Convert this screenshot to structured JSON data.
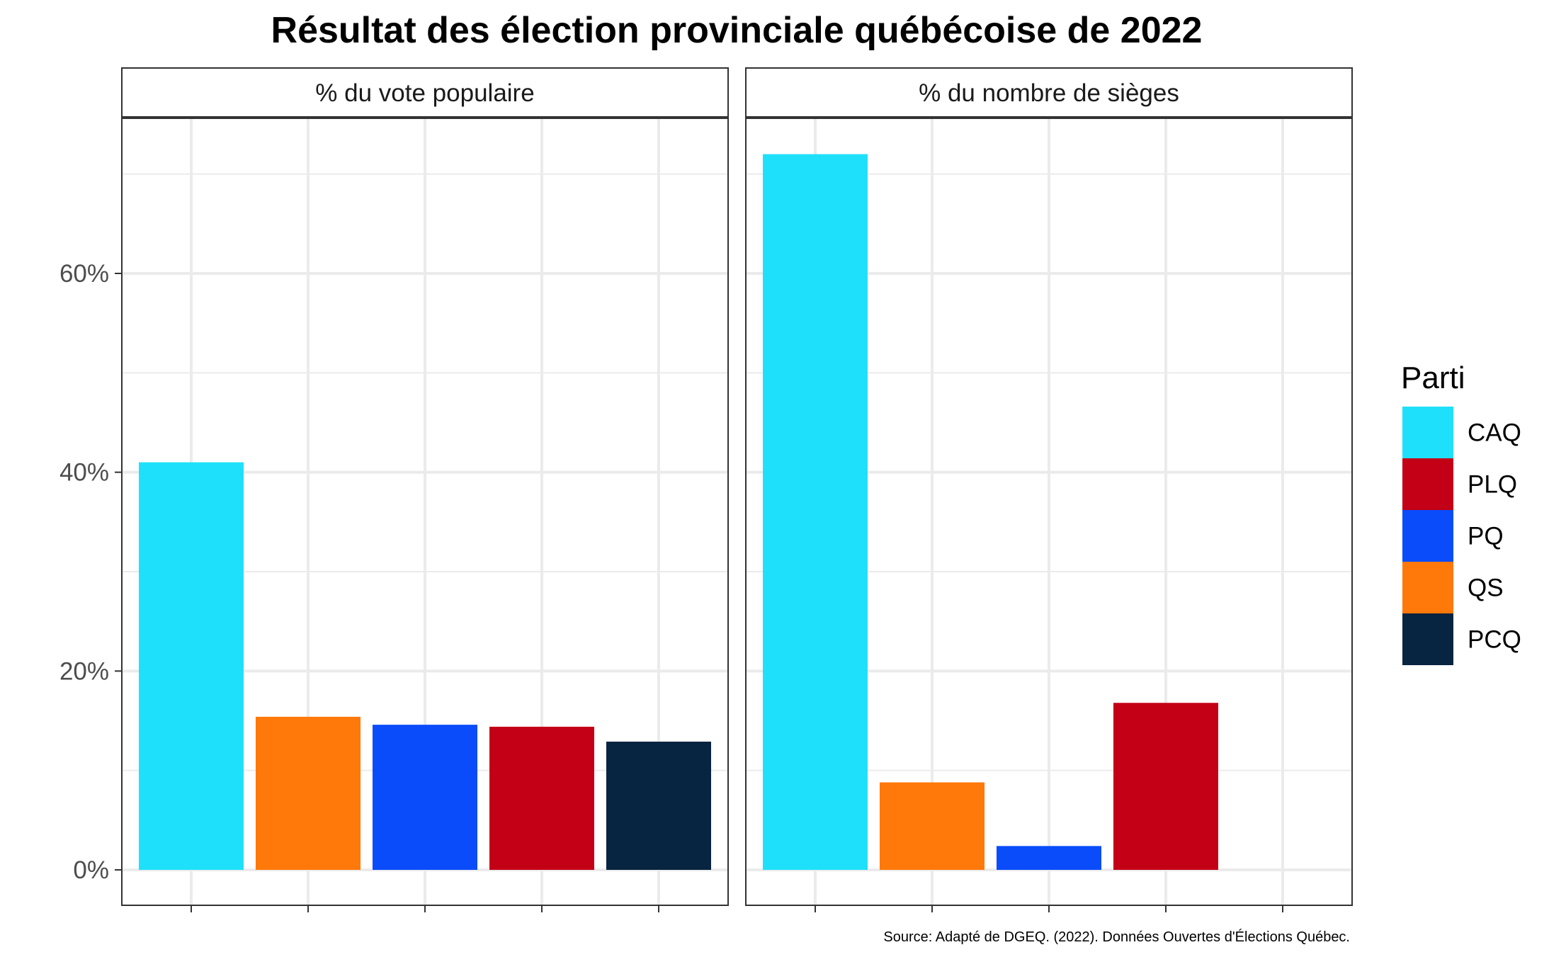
{
  "chart_data": {
    "type": "bar",
    "title": "Résultat des élection provinciale québécoise de 2022",
    "caption": "Source: Adapté de DGEQ. (2022). Données Ouvertes d'Élections Québec.",
    "ylim": [
      0,
      76
    ],
    "y_ticks": [
      0,
      20,
      40,
      60
    ],
    "y_tick_labels": [
      "0%",
      "20%",
      "40%",
      "60%"
    ],
    "grid": true,
    "legend": {
      "title": "Parti",
      "position": "right",
      "items": [
        {
          "label": "CAQ",
          "color": "#1FE0FA"
        },
        {
          "label": "PLQ",
          "color": "#C30016"
        },
        {
          "label": "PQ",
          "color": "#0A4CFA"
        },
        {
          "label": "QS",
          "color": "#FF780A"
        },
        {
          "label": "PCQ",
          "color": "#072440"
        }
      ]
    },
    "panels": [
      {
        "strip": "% du vote populaire",
        "bars": [
          {
            "party": "CAQ",
            "value": 41.0
          },
          {
            "party": "QS",
            "value": 15.4
          },
          {
            "party": "PQ",
            "value": 14.6
          },
          {
            "party": "PLQ",
            "value": 14.4
          },
          {
            "party": "PCQ",
            "value": 12.9
          }
        ]
      },
      {
        "strip": "% du nombre de sièges",
        "bars": [
          {
            "party": "CAQ",
            "value": 72.0
          },
          {
            "party": "QS",
            "value": 8.8
          },
          {
            "party": "PQ",
            "value": 2.4
          },
          {
            "party": "PLQ",
            "value": 16.8
          }
        ]
      }
    ]
  }
}
